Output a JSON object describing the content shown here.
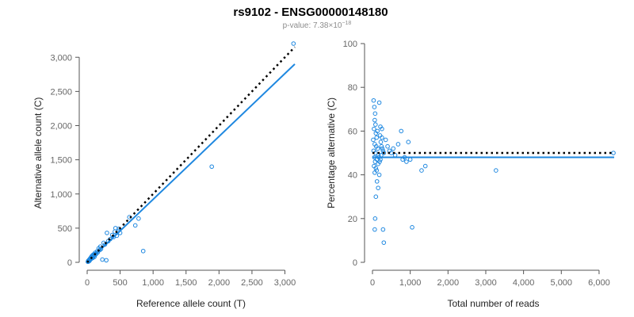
{
  "header": {
    "title": "rs9102 - ENSG00000148180",
    "pvalue_prefix": "p-value: 7.38×10",
    "pvalue_exponent": "−18"
  },
  "chart_data": [
    {
      "type": "scatter",
      "xlabel": "Reference allele count (T)",
      "ylabel": "Alternative allele count (C)",
      "xlim": [
        0,
        3150
      ],
      "ylim": [
        0,
        3200
      ],
      "xticks": [
        0,
        500,
        1000,
        1500,
        2000,
        2500,
        3000
      ],
      "xtick_labels": [
        "0",
        "500",
        "1,000",
        "1,500",
        "2,000",
        "2,500",
        "3,000"
      ],
      "yticks": [
        0,
        500,
        1000,
        1500,
        2000,
        2500,
        3000
      ],
      "ytick_labels": [
        "0",
        "500",
        "1,000",
        "1,500",
        "2,000",
        "2,500",
        "3,000"
      ],
      "reference_line": {
        "style": "dotted",
        "color": "#000000",
        "x": [
          0,
          3150
        ],
        "y": [
          0,
          3150
        ]
      },
      "fit_line": {
        "style": "solid",
        "color": "#1f88e0",
        "x": [
          0,
          3150
        ],
        "y": [
          0,
          2900
        ]
      },
      "points": [
        [
          10,
          8
        ],
        [
          15,
          20
        ],
        [
          20,
          12
        ],
        [
          25,
          30
        ],
        [
          30,
          35
        ],
        [
          35,
          22
        ],
        [
          40,
          50
        ],
        [
          45,
          38
        ],
        [
          50,
          60
        ],
        [
          55,
          48
        ],
        [
          60,
          75
        ],
        [
          65,
          55
        ],
        [
          70,
          90
        ],
        [
          75,
          70
        ],
        [
          80,
          100
        ],
        [
          85,
          65
        ],
        [
          90,
          110
        ],
        [
          95,
          85
        ],
        [
          100,
          95
        ],
        [
          105,
          120
        ],
        [
          110,
          80
        ],
        [
          120,
          140
        ],
        [
          130,
          115
        ],
        [
          140,
          130
        ],
        [
          150,
          160
        ],
        [
          160,
          145
        ],
        [
          175,
          205
        ],
        [
          190,
          180
        ],
        [
          200,
          230
        ],
        [
          210,
          195
        ],
        [
          230,
          40
        ],
        [
          250,
          285
        ],
        [
          270,
          260
        ],
        [
          290,
          30
        ],
        [
          300,
          430
        ],
        [
          320,
          310
        ],
        [
          350,
          340
        ],
        [
          380,
          400
        ],
        [
          400,
          370
        ],
        [
          420,
          450
        ],
        [
          430,
          500
        ],
        [
          450,
          390
        ],
        [
          470,
          460
        ],
        [
          480,
          490
        ],
        [
          500,
          430
        ],
        [
          640,
          660
        ],
        [
          730,
          540
        ],
        [
          780,
          640
        ],
        [
          850,
          165
        ],
        [
          1890,
          1400
        ],
        [
          3130,
          3200
        ]
      ]
    },
    {
      "type": "scatter",
      "xlabel": "Total number of reads",
      "ylabel": "Percentage alternative (C)",
      "xlim": [
        0,
        6400
      ],
      "ylim": [
        0,
        100
      ],
      "xticks": [
        0,
        1000,
        2000,
        3000,
        4000,
        5000,
        6000
      ],
      "xtick_labels": [
        "0",
        "1,000",
        "2,000",
        "3,000",
        "4,000",
        "5,000",
        "6,000"
      ],
      "yticks": [
        0,
        20,
        40,
        60,
        80,
        100
      ],
      "ytick_labels": [
        "0",
        "20",
        "40",
        "60",
        "80",
        "100"
      ],
      "reference_line": {
        "style": "dotted",
        "color": "#000000",
        "x": [
          0,
          6400
        ],
        "y": [
          50,
          50
        ]
      },
      "fit_line": {
        "style": "solid",
        "color": "#1f88e0",
        "x": [
          0,
          6400
        ],
        "y": [
          48,
          48
        ]
      },
      "points": [
        [
          30,
          74
        ],
        [
          50,
          71
        ],
        [
          70,
          68
        ],
        [
          60,
          65
        ],
        [
          80,
          63
        ],
        [
          40,
          61
        ],
        [
          90,
          59
        ],
        [
          110,
          57
        ],
        [
          20,
          56
        ],
        [
          130,
          60
        ],
        [
          60,
          54
        ],
        [
          100,
          53
        ],
        [
          140,
          52
        ],
        [
          30,
          51
        ],
        [
          80,
          50
        ],
        [
          160,
          49
        ],
        [
          50,
          48
        ],
        [
          120,
          47
        ],
        [
          70,
          46
        ],
        [
          150,
          45
        ],
        [
          40,
          44
        ],
        [
          90,
          43
        ],
        [
          110,
          42
        ],
        [
          60,
          41
        ],
        [
          180,
          40
        ],
        [
          200,
          58
        ],
        [
          220,
          55
        ],
        [
          240,
          53
        ],
        [
          260,
          52
        ],
        [
          280,
          51
        ],
        [
          300,
          50
        ],
        [
          170,
          48
        ],
        [
          190,
          46
        ],
        [
          210,
          47
        ],
        [
          230,
          49
        ],
        [
          250,
          57
        ],
        [
          120,
          37
        ],
        [
          150,
          34
        ],
        [
          90,
          30
        ],
        [
          70,
          20
        ],
        [
          60,
          15
        ],
        [
          280,
          15
        ],
        [
          300,
          9
        ],
        [
          180,
          73
        ],
        [
          210,
          62
        ],
        [
          250,
          61
        ],
        [
          350,
          56
        ],
        [
          400,
          53
        ],
        [
          450,
          51
        ],
        [
          500,
          50
        ],
        [
          550,
          52
        ],
        [
          600,
          49
        ],
        [
          680,
          54
        ],
        [
          760,
          60
        ],
        [
          800,
          47
        ],
        [
          850,
          48
        ],
        [
          900,
          46
        ],
        [
          950,
          55
        ],
        [
          1000,
          47
        ],
        [
          1050,
          16
        ],
        [
          1300,
          42
        ],
        [
          1400,
          44
        ],
        [
          3270,
          42
        ],
        [
          6380,
          50
        ]
      ]
    }
  ]
}
